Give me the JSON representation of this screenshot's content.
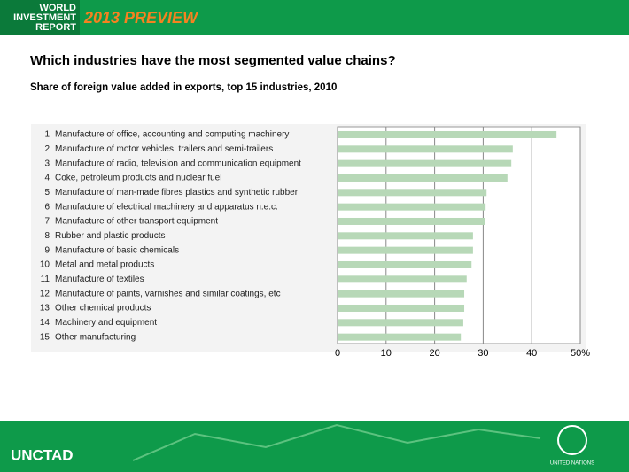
{
  "header": {
    "logo_lines": [
      "WORLD",
      "INVESTMENT",
      "REPORT"
    ],
    "edition": "2013 PREVIEW"
  },
  "footer": {
    "left": "UNCTAD",
    "right": "UNITED NATIONS"
  },
  "chart_data": {
    "type": "hbar",
    "title": "Which industries have the most segmented value chains?",
    "subtitle": "Share of foreign value added in exports, top 15 industries, 2010",
    "ranks": [
      1,
      2,
      3,
      4,
      5,
      6,
      7,
      8,
      9,
      10,
      11,
      12,
      13,
      14,
      15
    ],
    "categories": [
      "Manufacture of office, accounting and computing machinery",
      "Manufacture of motor vehicles, trailers and semi-trailers",
      "Manufacture of radio, television and communication equipment",
      "Coke, petroleum products and nuclear fuel",
      "Manufacture of man-made fibres plastics and synthetic rubber",
      "Manufacture of electrical machinery and apparatus n.e.c.",
      "Manufacture of other transport equipment",
      "Rubber and plastic products",
      "Manufacture of basic chemicals",
      "Metal and metal products",
      "Manufacture of textiles",
      "Manufacture of paints, varnishes and similar coatings, etc",
      "Other chemical products",
      "Machinery and equipment",
      "Other manufacturing"
    ],
    "values": [
      45.1,
      36.1,
      35.8,
      35.0,
      30.7,
      30.5,
      30.3,
      27.9,
      27.9,
      27.6,
      26.6,
      26.1,
      26.1,
      25.9,
      25.4
    ],
    "color": "#b7d8b7",
    "xlim": [
      0,
      50
    ],
    "xticks": [
      0,
      10,
      20,
      30,
      40,
      {
        "value": 50,
        "label": "50%"
      }
    ],
    "grid": true
  }
}
